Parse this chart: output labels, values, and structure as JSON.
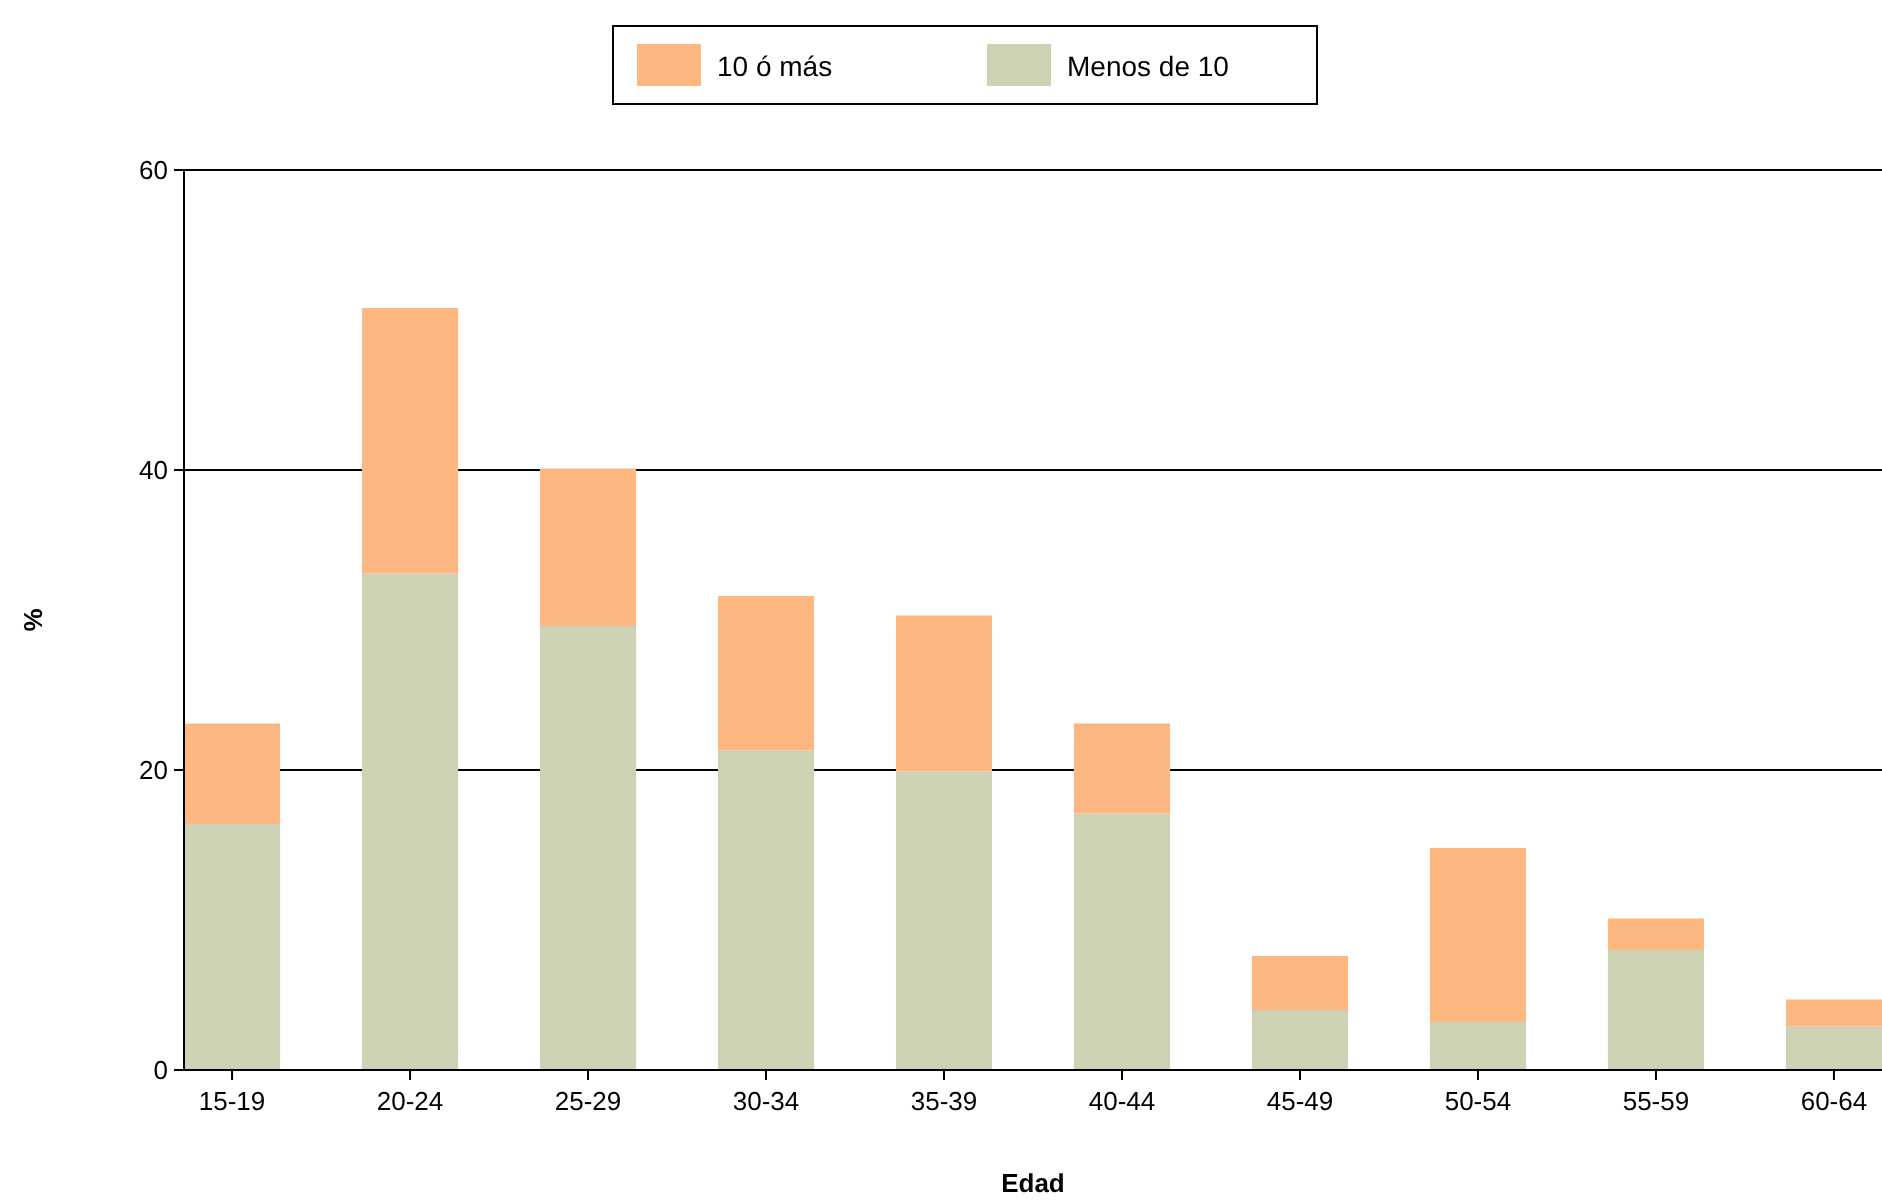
{
  "chart_data": {
    "type": "bar",
    "stacked": true,
    "xlabel": "Edad",
    "ylabel": "%",
    "categories": [
      "15-19",
      "20-24",
      "25-29",
      "30-34",
      "35-39",
      "40-44",
      "45-49",
      "50-54",
      "55-59",
      "60-64"
    ],
    "series": [
      {
        "name": "Menos de 10",
        "color": "#cdd2b4",
        "values": [
          16.4,
          33.1,
          29.6,
          21.3,
          19.9,
          17.1,
          4.0,
          3.2,
          8.0,
          2.9
        ]
      },
      {
        "name": "10 ó más",
        "color": "#fdb882",
        "values": [
          6.7,
          17.7,
          10.5,
          10.3,
          10.4,
          6.0,
          3.6,
          11.6,
          2.1,
          1.8
        ]
      }
    ],
    "ylim": [
      0,
      60
    ],
    "yticks": [
      0,
      20,
      40,
      60
    ],
    "grid": "y",
    "legend": "top"
  }
}
